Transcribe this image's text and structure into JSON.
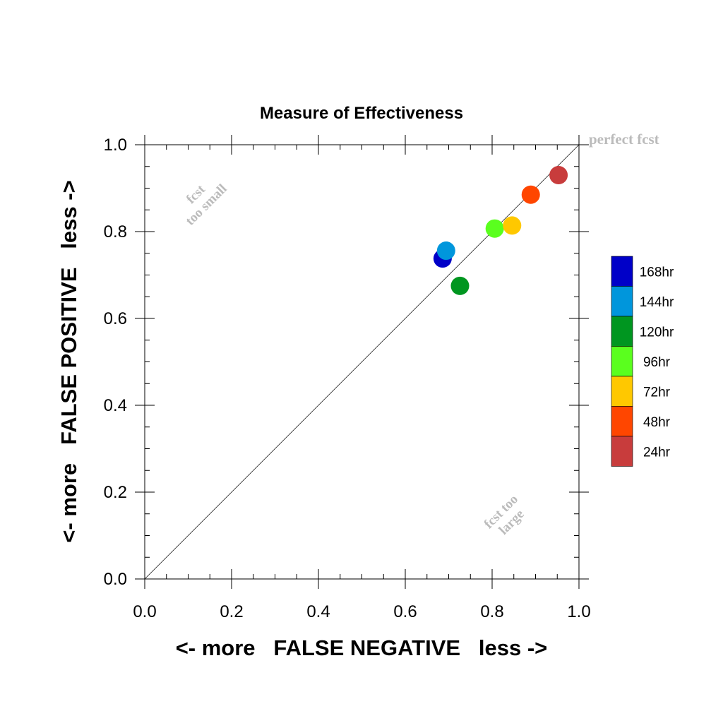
{
  "chart_data": {
    "type": "scatter",
    "title": "Measure of Effectiveness",
    "xlabel": "<- more   FALSE NEGATIVE   less ->",
    "ylabel": "<- more   FALSE POSITIVE   less ->",
    "xlim": [
      0.0,
      1.0
    ],
    "ylim": [
      0.0,
      1.0
    ],
    "x_ticks": [
      "0.0",
      "0.2",
      "0.4",
      "0.6",
      "0.8",
      "1.0"
    ],
    "y_ticks": [
      "0.0",
      "0.2",
      "0.4",
      "0.6",
      "0.8",
      "1.0"
    ],
    "grid": false,
    "diagonal_reference_line": true,
    "annotations": {
      "perfect": "perfect fcst",
      "too_small_line1": "fcst",
      "too_small_line2": "too small",
      "too_large_line1": "fcst too",
      "too_large_line2": "large"
    },
    "legend_position": "right",
    "series": [
      {
        "name": "168hr",
        "color": "#0000c8",
        "x": 0.686,
        "y": 0.738
      },
      {
        "name": "144hr",
        "color": "#0096dc",
        "x": 0.694,
        "y": 0.756
      },
      {
        "name": "120hr",
        "color": "#009620",
        "x": 0.726,
        "y": 0.675
      },
      {
        "name": "96hr",
        "color": "#5aff1e",
        "x": 0.806,
        "y": 0.807
      },
      {
        "name": "72hr",
        "color": "#ffc800",
        "x": 0.846,
        "y": 0.814
      },
      {
        "name": "48hr",
        "color": "#ff4600",
        "x": 0.889,
        "y": 0.885
      },
      {
        "name": "24hr",
        "color": "#c83c3c",
        "x": 0.953,
        "y": 0.93
      }
    ]
  }
}
